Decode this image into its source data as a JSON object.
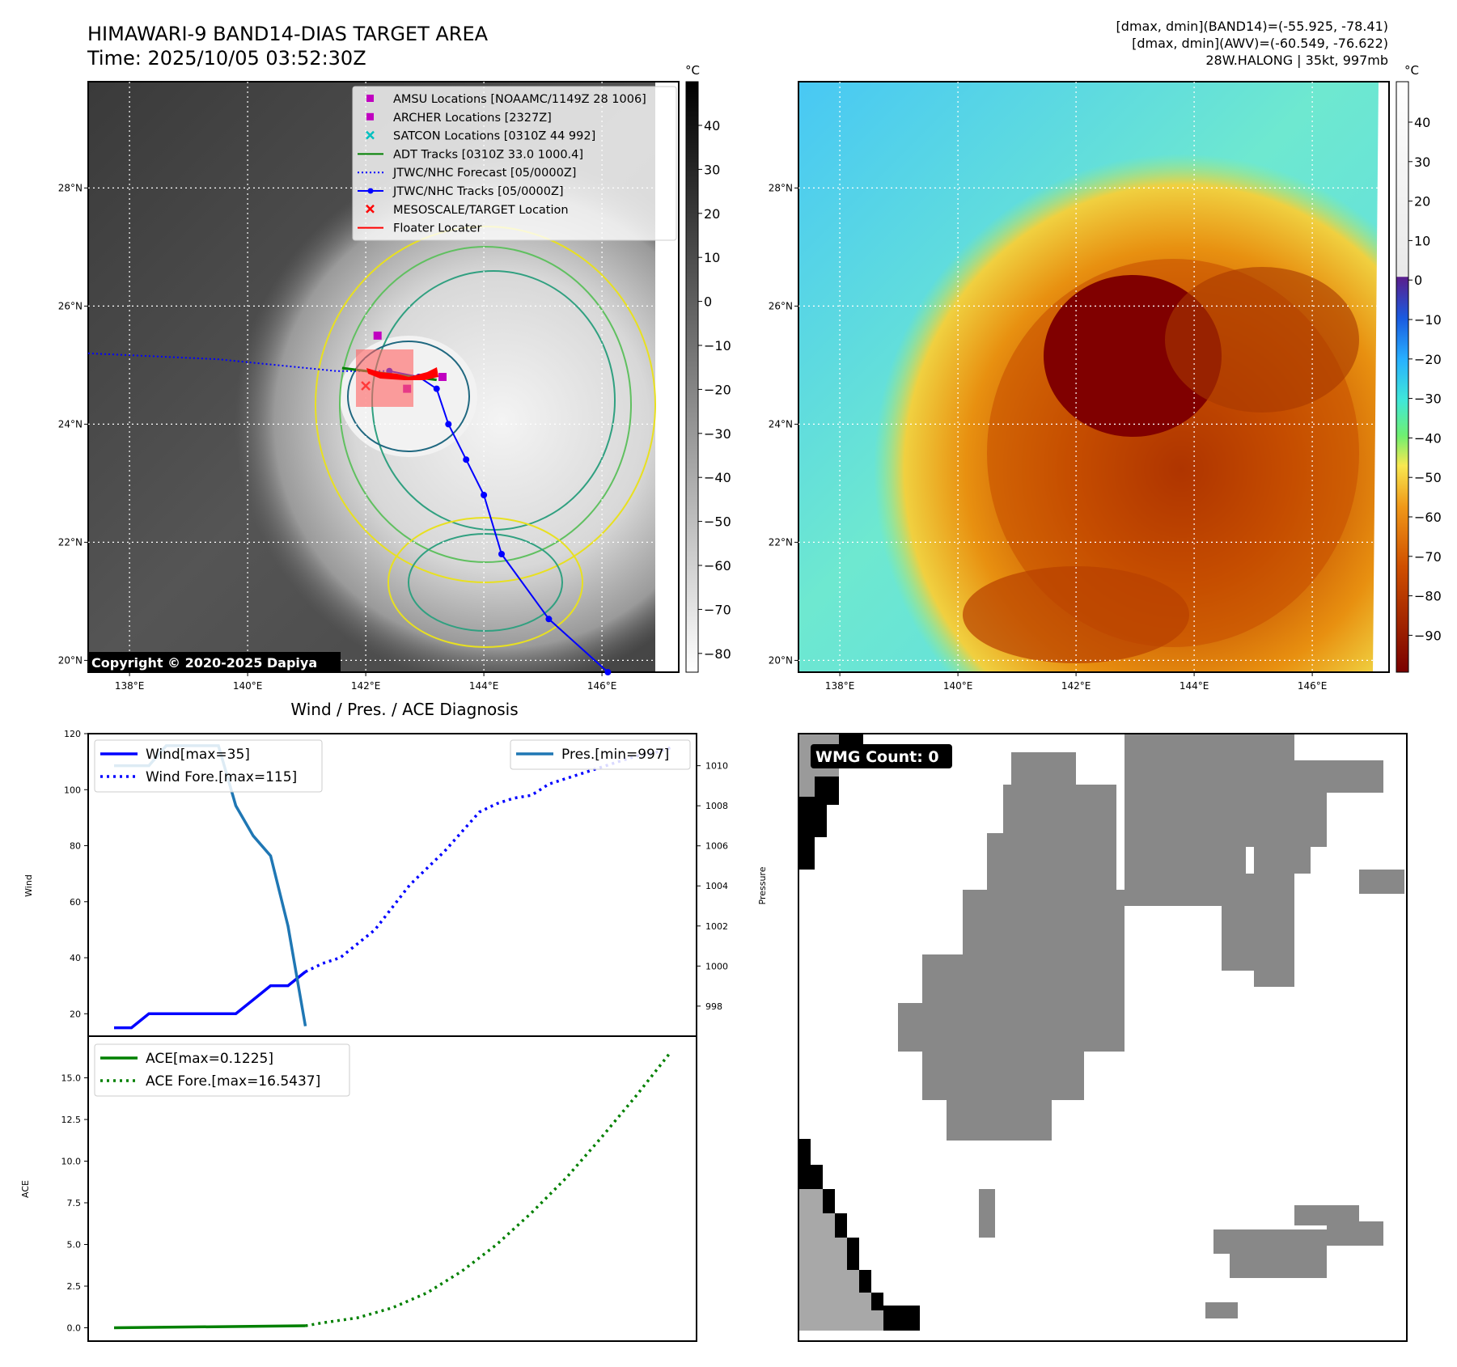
{
  "header": {
    "title": "HIMAWARI-9 BAND14-DIAS TARGET AREA",
    "time": "Time: 2025/10/05 03:52:30Z",
    "stats_band14": "[dmax, dmin](BAND14)=(-55.925, -78.41)",
    "stats_awv": "[dmax, dmin](AWV)=(-60.549, -76.622)",
    "storm": "28W.HALONG | 35kt, 997mb"
  },
  "maps": {
    "lon_ticks": [
      "138°E",
      "140°E",
      "142°E",
      "144°E",
      "146°E"
    ],
    "lat_ticks": [
      "28°N",
      "26°N",
      "24°N",
      "22°N",
      "20°N"
    ],
    "copyright": "Copyright © 2020-2025 Dapiya",
    "unit": "°C",
    "left_colorbar_ticks": [
      "40",
      "30",
      "20",
      "10",
      "0",
      "−10",
      "−20",
      "−30",
      "−40",
      "−50",
      "−60",
      "−70",
      "−80"
    ],
    "right_colorbar_ticks": [
      "40",
      "30",
      "20",
      "10",
      "0",
      "−10",
      "−20",
      "−30",
      "−40",
      "−50",
      "−60",
      "−70",
      "−80",
      "−90"
    ],
    "legend": [
      {
        "label": "AMSU Locations [NOAAMC/1149Z 28 1006]",
        "color": "#c000c0",
        "icon": "square-marker"
      },
      {
        "label": "ARCHER Locations [2327Z]",
        "color": "#c000c0",
        "icon": "square-marker"
      },
      {
        "label": "SATCON Locations [0310Z 44 992]",
        "color": "#00c0c0",
        "icon": "x-marker"
      },
      {
        "label": "ADT Tracks [0310Z 33.0 1000.4]",
        "color": "#008000",
        "icon": "line"
      },
      {
        "label": "JTWC/NHC Forecast [05/0000Z]",
        "color": "#0000ff",
        "icon": "dotted-line"
      },
      {
        "label": "JTWC/NHC Tracks [05/0000Z]",
        "color": "#0000ff",
        "icon": "line-dot"
      },
      {
        "label": "MESOSCALE/TARGET Location",
        "color": "#ff0000",
        "icon": "x-marker"
      },
      {
        "label": "Floater Locater",
        "color": "#ff0000",
        "icon": "line"
      }
    ],
    "track_lonlat": [
      [
        142.4,
        24.9
      ],
      [
        142.9,
        24.8
      ],
      [
        143.2,
        24.6
      ],
      [
        143.4,
        24.0
      ],
      [
        143.7,
        23.4
      ],
      [
        144.0,
        22.8
      ],
      [
        144.3,
        21.8
      ],
      [
        145.1,
        20.7
      ],
      [
        146.1,
        19.8
      ]
    ],
    "forecast_lonlat": [
      [
        137.3,
        25.2
      ],
      [
        139.5,
        25.1
      ],
      [
        141.5,
        24.9
      ],
      [
        142.4,
        24.9
      ]
    ],
    "amsu_lonlat": [
      [
        142.2,
        25.5
      ],
      [
        142.7,
        24.6
      ],
      [
        143.3,
        24.8
      ]
    ]
  },
  "chart_data": [
    {
      "type": "line",
      "title": "Wind / Pres. / ACE Diagnosis",
      "ylabel": "Wind",
      "y2label": "Pressure",
      "ylim": [
        12,
        120
      ],
      "y2lim": [
        996.5,
        1011.6
      ],
      "yticks": [
        "20",
        "40",
        "60",
        "80",
        "100",
        "120"
      ],
      "y2ticks": [
        "998",
        "1000",
        "1002",
        "1004",
        "1006",
        "1008",
        "1010"
      ],
      "series": [
        {
          "name": "Wind[max=35]",
          "color": "#0000ff",
          "style": "solid",
          "axis": "left",
          "x": [
            0,
            1,
            2,
            3,
            4,
            5,
            6,
            7,
            8,
            9,
            10,
            11
          ],
          "values": [
            15,
            15,
            20,
            20,
            20,
            20,
            20,
            20,
            25,
            30,
            30,
            35
          ]
        },
        {
          "name": "Wind Fore.[max=115]",
          "color": "#0000ff",
          "style": "dotted",
          "axis": "left",
          "x": [
            11,
            12,
            13,
            14,
            15,
            16,
            17,
            18,
            19,
            20,
            21,
            22,
            23,
            24,
            25,
            26,
            27,
            28,
            29,
            30,
            31,
            32
          ],
          "values": [
            35,
            38,
            40,
            45,
            50,
            58,
            66,
            72,
            78,
            85,
            92,
            95,
            97,
            98,
            102,
            104,
            106,
            108,
            110,
            112,
            113,
            115
          ]
        },
        {
          "name": "Pres.[min=997]",
          "color": "#1f77b4",
          "style": "solid",
          "axis": "right",
          "x": [
            0,
            1,
            2,
            3,
            4,
            5,
            6,
            7,
            8,
            9,
            10,
            11
          ],
          "values": [
            1010,
            1010,
            1010,
            1011,
            1011,
            1011,
            1011,
            1008,
            1006.5,
            1005.5,
            1002,
            997
          ]
        }
      ]
    },
    {
      "type": "line",
      "ylabel": "ACE",
      "ylim": [
        -0.8,
        17.5
      ],
      "yticks": [
        "0.0",
        "2.5",
        "5.0",
        "7.5",
        "10.0",
        "12.5",
        "15.0"
      ],
      "series": [
        {
          "name": "ACE[max=0.1225]",
          "color": "#008000",
          "style": "solid",
          "x": [
            0,
            11
          ],
          "values": [
            0,
            0.1225
          ]
        },
        {
          "name": "ACE Fore.[max=16.5437]",
          "color": "#008000",
          "style": "dotted",
          "x": [
            11,
            12,
            14,
            16,
            18,
            20,
            22,
            24,
            26,
            28,
            30,
            32
          ],
          "values": [
            0.12,
            0.3,
            0.6,
            1.2,
            2.1,
            3.4,
            5.0,
            6.9,
            9.0,
            11.4,
            13.9,
            16.5437
          ]
        }
      ]
    }
  ],
  "wmg": {
    "label": "WMG Count: 0"
  }
}
